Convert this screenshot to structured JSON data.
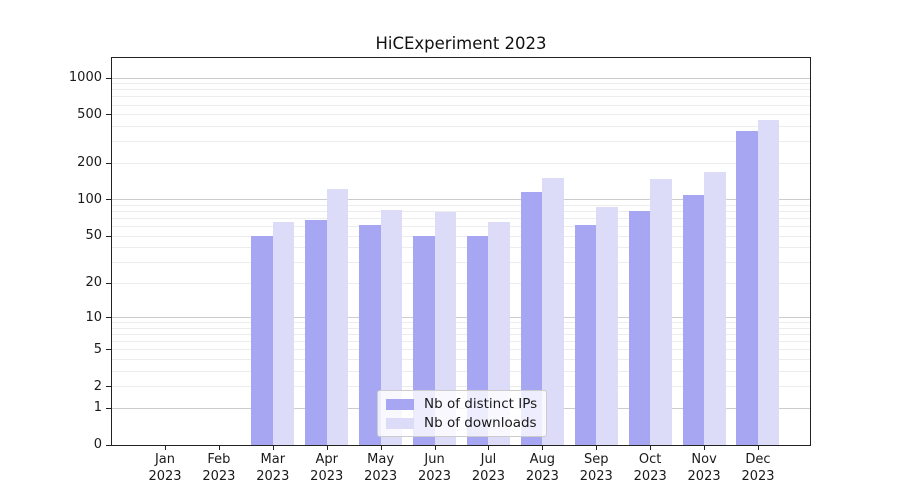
{
  "chart_data": {
    "type": "bar",
    "title": "HiCExperiment 2023",
    "categories": [
      "Jan",
      "Feb",
      "Mar",
      "Apr",
      "May",
      "Jun",
      "Jul",
      "Aug",
      "Sep",
      "Oct",
      "Nov",
      "Dec"
    ],
    "category_year": "2023",
    "series": [
      {
        "name": "Nb of distinct IPs",
        "color": "#a6a6f2",
        "values": [
          0,
          0,
          50,
          68,
          62,
          50,
          50,
          115,
          62,
          81,
          110,
          370
        ]
      },
      {
        "name": "Nb of downloads",
        "color": "#dcdcf8",
        "values": [
          0,
          0,
          65,
          122,
          82,
          79,
          65,
          151,
          87,
          148,
          168,
          450
        ]
      }
    ],
    "y_ticks": [
      0,
      1,
      2,
      5,
      10,
      20,
      50,
      100,
      200,
      500,
      1000
    ],
    "y_scale": "log1p",
    "ylim": [
      0,
      1450
    ],
    "grid": true,
    "legend_position": "lower center inside plot",
    "colors": {
      "axis": "#222222",
      "grid_major": "#cccccc",
      "grid_minor": "#ececec",
      "text": "#1a1a1a",
      "background": "#ffffff"
    }
  }
}
